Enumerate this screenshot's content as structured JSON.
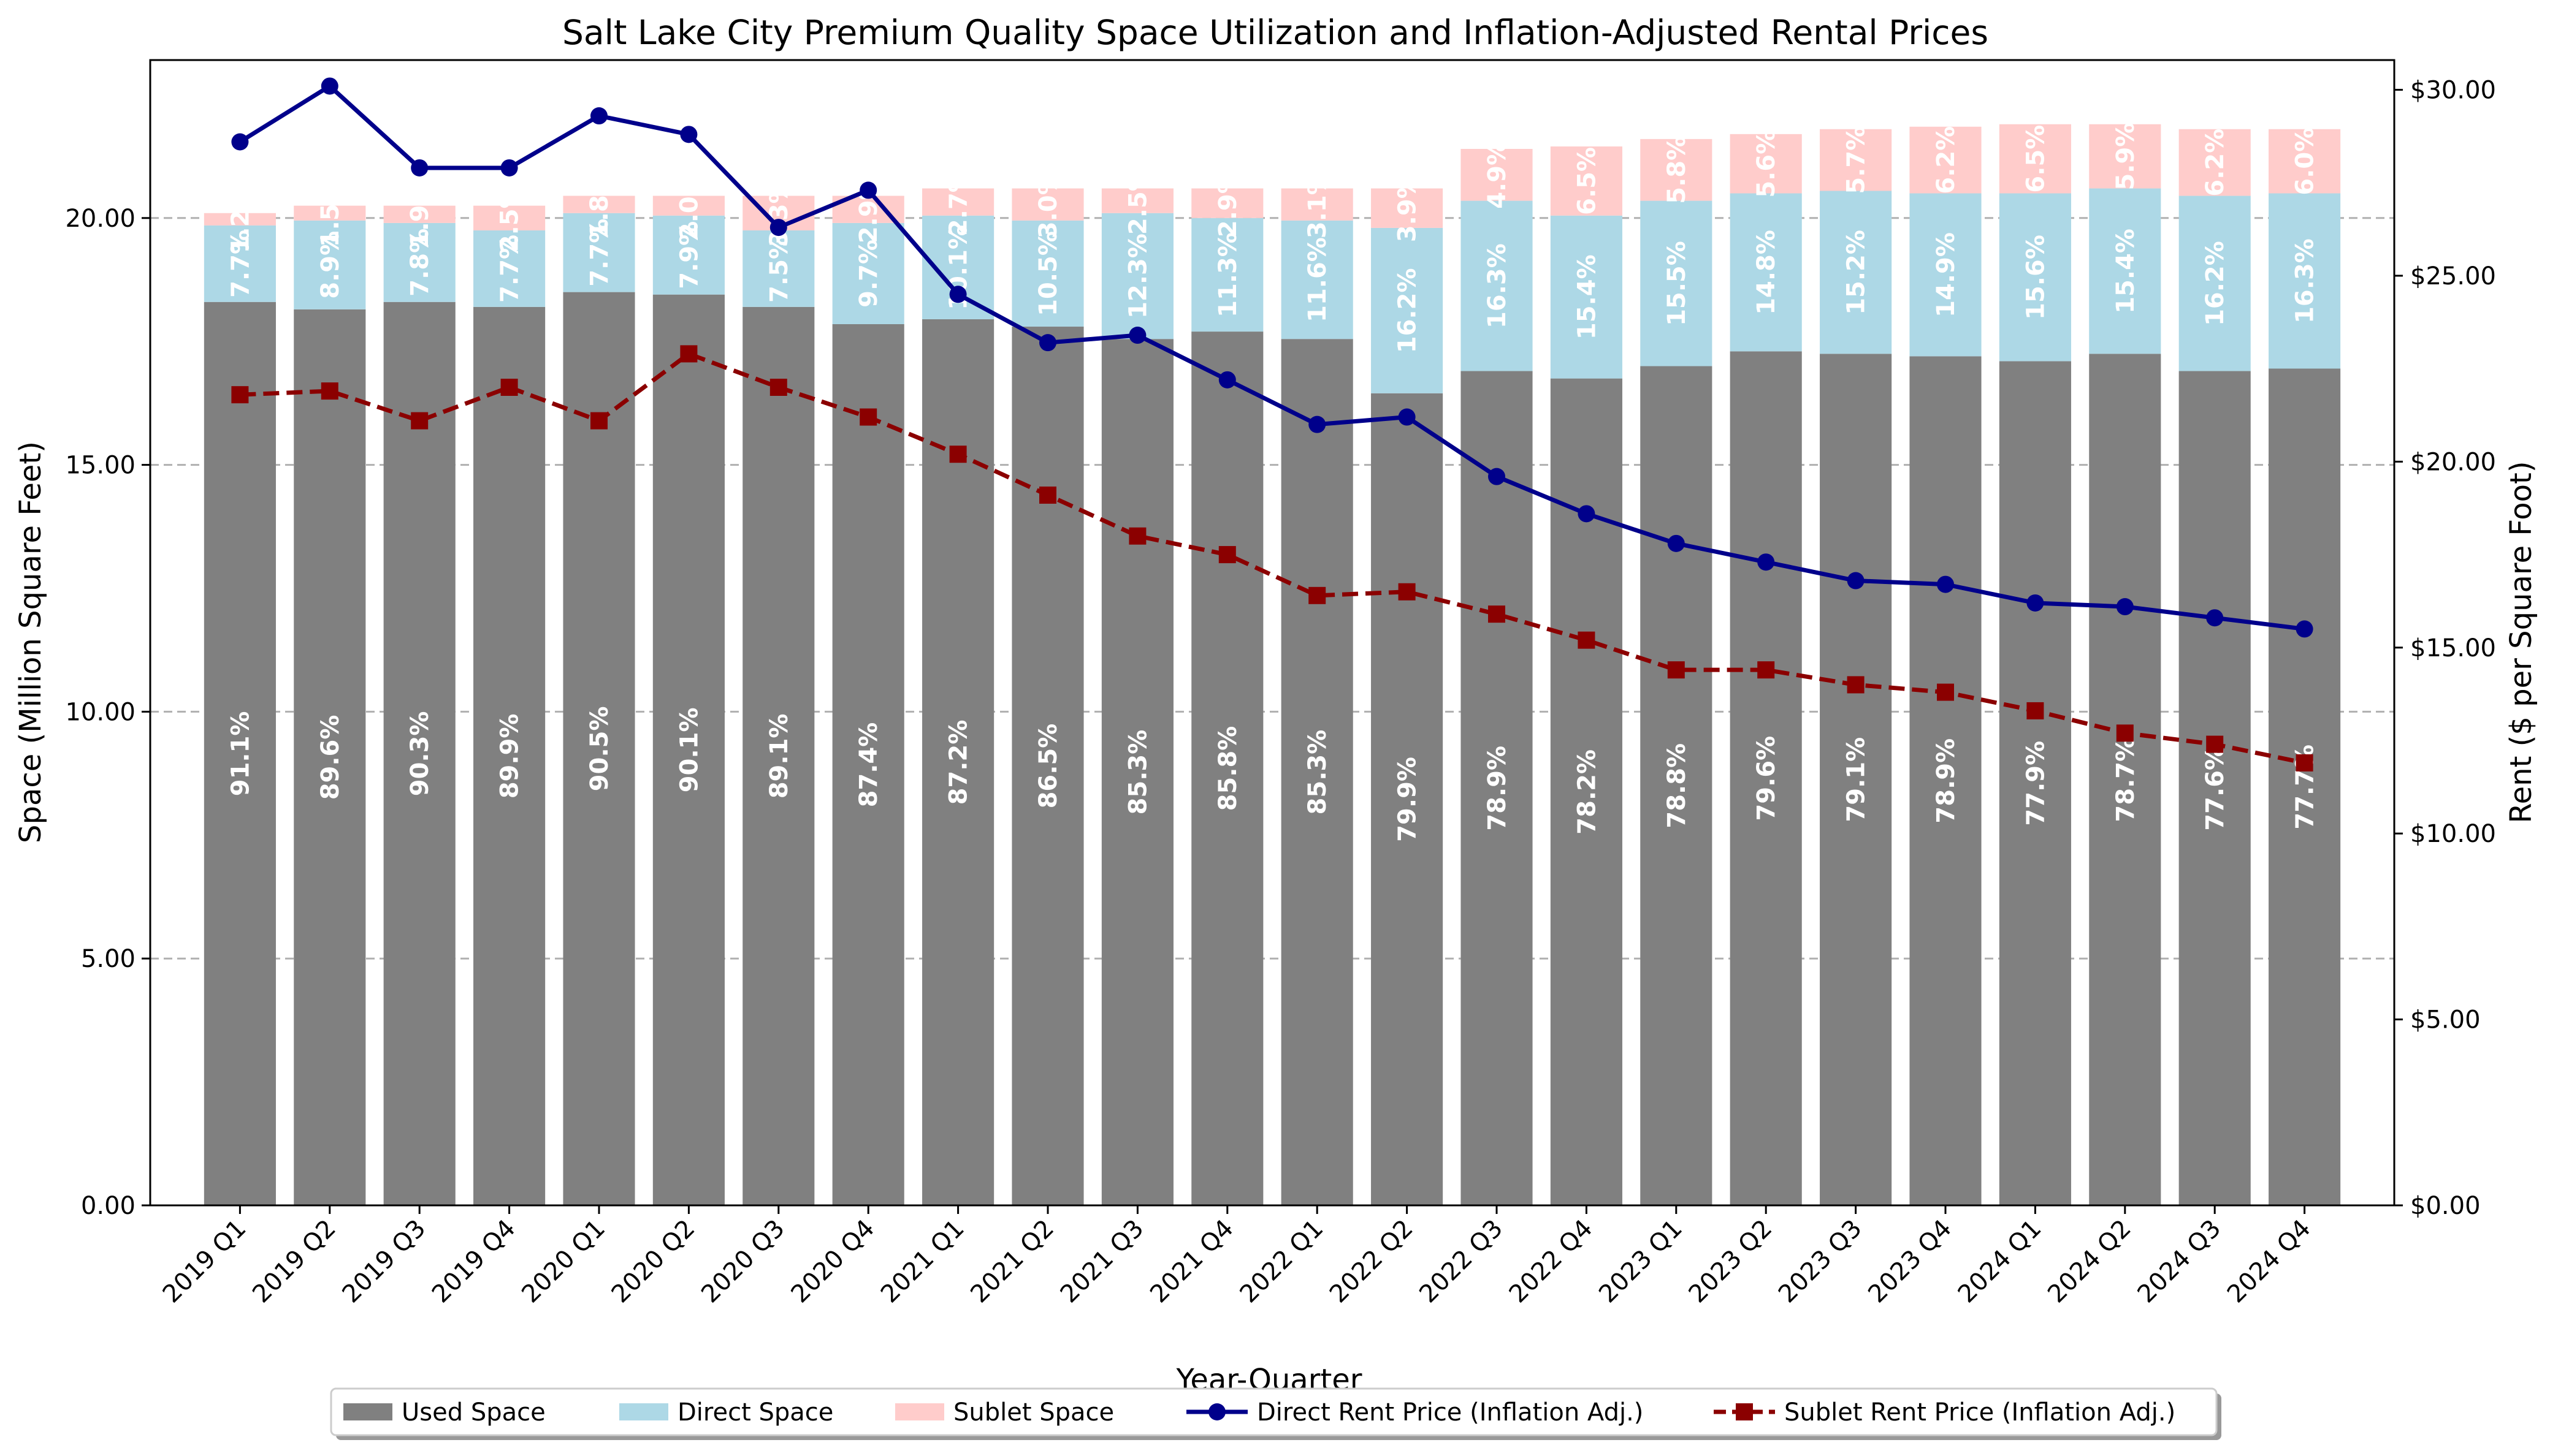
{
  "chart_data": {
    "type": "bar",
    "stacked": true,
    "title": "Salt Lake City Premium Quality Space Utilization and Inflation-Adjusted Rental Prices",
    "xlabel": "Year-Quarter",
    "ylabel": "Space (Million Square Feet)",
    "y2label": "Rent ($ per Square Foot)",
    "ylim": [
      0,
      23.2
    ],
    "y2lim": [
      0,
      30.8
    ],
    "yticks": [
      "0.00",
      "5.00",
      "10.00",
      "15.00",
      "20.00"
    ],
    "y2ticks": [
      "$0.00",
      "$5.00",
      "$10.00",
      "$15.00",
      "$20.00",
      "$25.00",
      "$30.00"
    ],
    "grid": true,
    "legend_position": "bottom-center",
    "colors": {
      "used": "#808080",
      "direct": "#add8e6",
      "sublet": "#ffcccb",
      "direct_rent": "#00008b",
      "sublet_rent": "#8b0000"
    },
    "categories": [
      "2019 Q1",
      "2019 Q2",
      "2019 Q3",
      "2019 Q4",
      "2020 Q1",
      "2020 Q2",
      "2020 Q3",
      "2020 Q4",
      "2021 Q1",
      "2021 Q2",
      "2021 Q3",
      "2021 Q4",
      "2022 Q1",
      "2022 Q2",
      "2022 Q3",
      "2022 Q4",
      "2023 Q1",
      "2023 Q2",
      "2023 Q3",
      "2023 Q4",
      "2024 Q1",
      "2024 Q2",
      "2024 Q3",
      "2024 Q4"
    ],
    "series": [
      {
        "name": "Used Space",
        "kind": "bar",
        "values": [
          18.3,
          18.15,
          18.3,
          18.2,
          18.5,
          18.45,
          18.2,
          17.85,
          17.95,
          17.8,
          17.55,
          17.7,
          17.55,
          16.45,
          16.9,
          16.75,
          17.0,
          17.3,
          17.25,
          17.2,
          17.1,
          17.25,
          16.9,
          16.95
        ],
        "labels": [
          "91.1%",
          "89.6%",
          "90.3%",
          "89.9%",
          "90.5%",
          "90.1%",
          "89.1%",
          "87.4%",
          "87.2%",
          "86.5%",
          "85.3%",
          "85.8%",
          "85.3%",
          "79.9%",
          "78.9%",
          "78.2%",
          "78.8%",
          "79.6%",
          "79.1%",
          "78.9%",
          "77.9%",
          "78.7%",
          "77.6%",
          "77.7%"
        ]
      },
      {
        "name": "Direct Space",
        "kind": "bar",
        "values": [
          1.55,
          1.8,
          1.6,
          1.55,
          1.6,
          1.6,
          1.55,
          2.05,
          2.1,
          2.15,
          2.55,
          2.3,
          2.4,
          3.35,
          3.45,
          3.3,
          3.35,
          3.2,
          3.3,
          3.3,
          3.4,
          3.35,
          3.55,
          3.55
        ],
        "labels": [
          "7.7%",
          "8.9%",
          "7.8%",
          "7.7%",
          "7.7%",
          "7.9%",
          "7.5%",
          "9.7%",
          "10.1%",
          "10.5%",
          "12.3%",
          "11.3%",
          "11.6%",
          "16.2%",
          "16.3%",
          "15.4%",
          "15.5%",
          "14.8%",
          "15.2%",
          "14.9%",
          "15.6%",
          "15.4%",
          "16.2%",
          "16.3%"
        ]
      },
      {
        "name": "Sublet Space",
        "kind": "bar",
        "values": [
          0.25,
          0.3,
          0.35,
          0.5,
          0.35,
          0.4,
          0.7,
          0.55,
          0.55,
          0.65,
          0.5,
          0.6,
          0.65,
          0.8,
          1.05,
          1.4,
          1.25,
          1.2,
          1.25,
          1.35,
          1.4,
          1.3,
          1.35,
          1.3
        ],
        "labels": [
          "1.2%",
          "1.5%",
          "1.9%",
          "2.5%",
          "1.8%",
          "2.0%",
          "3.3%",
          "2.9%",
          "2.7%",
          "3.0%",
          "2.5%",
          "2.9%",
          "3.1%",
          "3.9%",
          "4.9%",
          "6.5%",
          "5.8%",
          "5.6%",
          "5.7%",
          "6.2%",
          "6.5%",
          "5.9%",
          "6.2%",
          "6.0%"
        ]
      },
      {
        "name": "Direct Rent Price (Inflation Adj.)",
        "kind": "line",
        "axis": "right",
        "values": [
          28.6,
          30.1,
          27.9,
          27.9,
          29.3,
          28.8,
          26.3,
          27.3,
          24.5,
          23.2,
          23.4,
          22.2,
          21.0,
          21.2,
          19.6,
          18.6,
          17.8,
          17.3,
          16.8,
          16.7,
          16.2,
          16.1,
          15.8,
          15.5
        ]
      },
      {
        "name": "Sublet Rent Price (Inflation Adj.)",
        "kind": "line",
        "axis": "right",
        "values": [
          21.8,
          21.9,
          21.1,
          22.0,
          21.1,
          22.9,
          22.0,
          21.2,
          20.2,
          19.1,
          18.0,
          17.5,
          16.4,
          16.5,
          15.9,
          15.2,
          14.4,
          14.4,
          14.0,
          13.8,
          13.3,
          12.7,
          12.4,
          11.9
        ]
      }
    ]
  }
}
